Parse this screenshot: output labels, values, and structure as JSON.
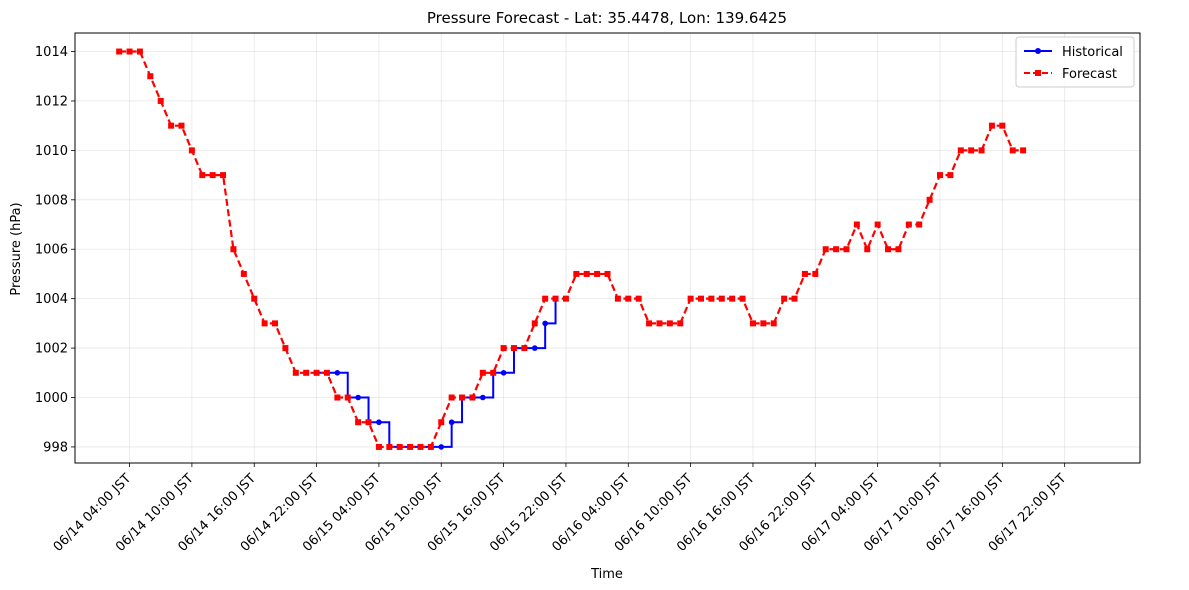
{
  "chart_data": {
    "type": "line",
    "title": "Pressure Forecast - Lat: 35.4478, Lon: 139.6425",
    "xlabel": "Time",
    "ylabel": "Pressure (hPa)",
    "ylim": [
      997.35,
      1014.75
    ],
    "xlim_hours": [
      -5.25,
      97.25
    ],
    "grid": true,
    "legend_position": "top-right",
    "x_ticks": [
      "06/14 04:00 JST",
      "06/14 10:00 JST",
      "06/14 16:00 JST",
      "06/14 22:00 JST",
      "06/15 04:00 JST",
      "06/15 10:00 JST",
      "06/15 16:00 JST",
      "06/15 22:00 JST",
      "06/16 04:00 JST",
      "06/16 10:00 JST",
      "06/16 16:00 JST",
      "06/16 22:00 JST",
      "06/17 04:00 JST",
      "06/17 10:00 JST",
      "06/17 16:00 JST",
      "06/17 22:00 JST"
    ],
    "y_ticks": [
      "998",
      "1000",
      "1002",
      "1004",
      "1006",
      "1008",
      "1010",
      "1012",
      "1014"
    ],
    "series": [
      {
        "name": "Historical",
        "color": "#0000ff",
        "style": "solid",
        "marker": "circle",
        "x": [
          "06/14 22:00 JST",
          "06/14 23:00 JST",
          "06/15 00:00 JST",
          "06/15 01:00 JST",
          "06/15 02:00 JST",
          "06/15 03:00 JST",
          "06/15 04:00 JST",
          "06/15 05:00 JST",
          "06/15 06:00 JST",
          "06/15 07:00 JST",
          "06/15 08:00 JST",
          "06/15 09:00 JST",
          "06/15 10:00 JST",
          "06/15 11:00 JST",
          "06/15 12:00 JST",
          "06/15 13:00 JST",
          "06/15 14:00 JST",
          "06/15 15:00 JST",
          "06/15 16:00 JST",
          "06/15 17:00 JST",
          "06/15 18:00 JST",
          "06/15 19:00 JST",
          "06/15 20:00 JST",
          "06/15 21:00 JST"
        ],
        "y": [
          1001,
          1001,
          1001,
          1000,
          1000,
          999,
          999,
          998,
          998,
          998,
          998,
          998,
          998,
          999,
          1000,
          1000,
          1000,
          1001,
          1001,
          1002,
          1002,
          1002,
          1003,
          1004
        ]
      },
      {
        "name": "Forecast",
        "color": "#ff0000",
        "style": "dashed",
        "marker": "square",
        "x": [
          "06/14 03:00 JST",
          "06/14 04:00 JST",
          "06/14 05:00 JST",
          "06/14 06:00 JST",
          "06/14 07:00 JST",
          "06/14 08:00 JST",
          "06/14 09:00 JST",
          "06/14 10:00 JST",
          "06/14 11:00 JST",
          "06/14 12:00 JST",
          "06/14 13:00 JST",
          "06/14 14:00 JST",
          "06/14 15:00 JST",
          "06/14 16:00 JST",
          "06/14 17:00 JST",
          "06/14 18:00 JST",
          "06/14 19:00 JST",
          "06/14 20:00 JST",
          "06/14 21:00 JST",
          "06/14 22:00 JST",
          "06/14 23:00 JST",
          "06/15 00:00 JST",
          "06/15 01:00 JST",
          "06/15 02:00 JST",
          "06/15 03:00 JST",
          "06/15 04:00 JST",
          "06/15 05:00 JST",
          "06/15 06:00 JST",
          "06/15 07:00 JST",
          "06/15 08:00 JST",
          "06/15 09:00 JST",
          "06/15 10:00 JST",
          "06/15 11:00 JST",
          "06/15 12:00 JST",
          "06/15 13:00 JST",
          "06/15 14:00 JST",
          "06/15 15:00 JST",
          "06/15 16:00 JST",
          "06/15 17:00 JST",
          "06/15 18:00 JST",
          "06/15 19:00 JST",
          "06/15 20:00 JST",
          "06/15 21:00 JST",
          "06/15 22:00 JST",
          "06/15 23:00 JST",
          "06/16 00:00 JST",
          "06/16 01:00 JST",
          "06/16 02:00 JST",
          "06/16 03:00 JST",
          "06/16 04:00 JST",
          "06/16 05:00 JST",
          "06/16 06:00 JST",
          "06/16 07:00 JST",
          "06/16 08:00 JST",
          "06/16 09:00 JST",
          "06/16 10:00 JST",
          "06/16 11:00 JST",
          "06/16 12:00 JST",
          "06/16 13:00 JST",
          "06/16 14:00 JST",
          "06/16 15:00 JST",
          "06/16 16:00 JST",
          "06/16 17:00 JST",
          "06/16 18:00 JST",
          "06/16 19:00 JST",
          "06/16 20:00 JST",
          "06/16 21:00 JST",
          "06/16 22:00 JST",
          "06/16 23:00 JST",
          "06/17 00:00 JST",
          "06/17 01:00 JST",
          "06/17 02:00 JST",
          "06/17 03:00 JST",
          "06/17 04:00 JST",
          "06/17 05:00 JST",
          "06/17 06:00 JST",
          "06/17 07:00 JST",
          "06/17 08:00 JST",
          "06/17 09:00 JST",
          "06/17 10:00 JST",
          "06/17 11:00 JST",
          "06/17 12:00 JST",
          "06/17 13:00 JST",
          "06/17 14:00 JST",
          "06/17 15:00 JST",
          "06/17 16:00 JST",
          "06/17 17:00 JST",
          "06/17 18:00 JST"
        ],
        "y": [
          1014,
          1014,
          1014,
          1013,
          1012,
          1011,
          1011,
          1010,
          1009,
          1009,
          1009,
          1006,
          1005,
          1004,
          1003,
          1003,
          1002,
          1001,
          1001,
          1001,
          1001,
          1000,
          1000,
          999,
          999,
          998,
          998,
          998,
          998,
          998,
          998,
          999,
          1000,
          1000,
          1000,
          1001,
          1001,
          1002,
          1002,
          1002,
          1003,
          1004,
          1004,
          1004,
          1005,
          1005,
          1005,
          1005,
          1004,
          1004,
          1004,
          1003,
          1003,
          1003,
          1003,
          1004,
          1004,
          1004,
          1004,
          1004,
          1004,
          1003,
          1003,
          1003,
          1004,
          1004,
          1005,
          1005,
          1006,
          1006,
          1006,
          1007,
          1006,
          1007,
          1006,
          1006,
          1007,
          1007,
          1008,
          1009,
          1009,
          1010,
          1010,
          1010,
          1011,
          1011,
          1010,
          1010
        ]
      }
    ]
  }
}
